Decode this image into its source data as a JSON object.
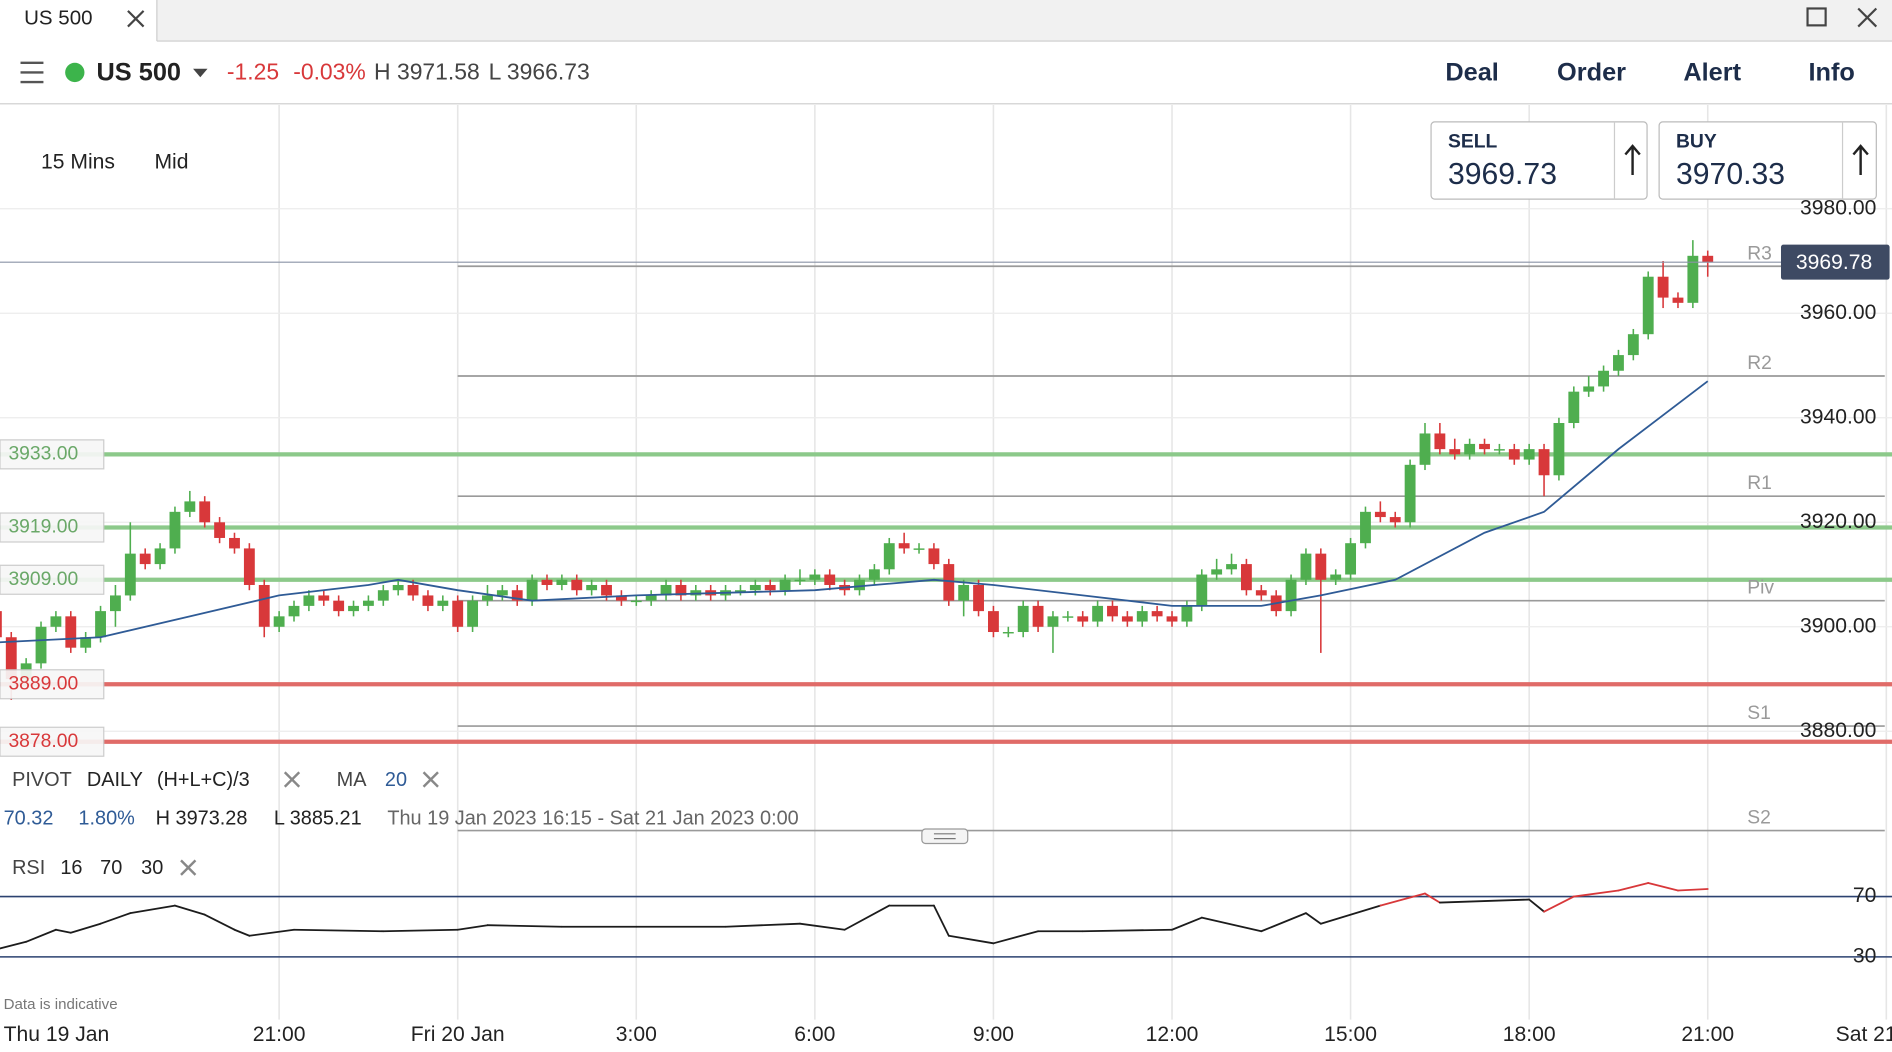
{
  "tab": {
    "title": "US 500"
  },
  "header": {
    "instrument": "US 500",
    "change": "-1.25",
    "change_pct": "-0.03%",
    "high": "H 3971.58",
    "low": "L 3966.73",
    "menu": [
      "Deal",
      "Order",
      "Alert",
      "Info"
    ]
  },
  "toolbar": {
    "interval": "15 Mins",
    "price_type": "Mid"
  },
  "quote": {
    "sell_label": "SELL",
    "sell": "3969.73",
    "buy_label": "BUY",
    "buy": "3970.33"
  },
  "indicators": {
    "pivot": {
      "name": "PIVOT",
      "period": "DAILY",
      "formula": "(H+L+C)/3"
    },
    "ma": {
      "name": "MA",
      "period": "20"
    },
    "stats": {
      "value": "70.32",
      "pct": "1.80%",
      "high": "H 3973.28",
      "low": "L 3885.21",
      "range": "Thu 19 Jan 2023 16:15 - Sat 21 Jan 2023 0:00"
    },
    "rsi": {
      "name": "RSI",
      "params": [
        "16",
        "70",
        "30"
      ]
    }
  },
  "note": "Data is indicative",
  "chart_data": [
    {
      "type": "candlestick",
      "x": [
        "2023-01-19T16:15",
        "2023-01-19T16:30",
        "2023-01-19T16:45",
        "2023-01-19T17:00",
        "2023-01-19T17:15",
        "2023-01-19T17:30",
        "2023-01-19T17:45",
        "2023-01-19T18:00",
        "2023-01-19T18:15",
        "2023-01-19T18:30",
        "2023-01-19T18:45",
        "2023-01-19T19:00",
        "2023-01-19T19:15",
        "2023-01-19T19:30",
        "2023-01-19T19:45",
        "2023-01-19T20:00",
        "2023-01-19T20:15",
        "2023-01-19T20:30",
        "2023-01-19T20:45",
        "2023-01-19T21:00",
        "2023-01-19T21:15",
        "2023-01-19T21:30",
        "2023-01-19T21:45",
        "2023-01-19T22:00",
        "2023-01-19T22:15",
        "2023-01-19T22:30",
        "2023-01-19T22:45",
        "2023-01-19T23:00",
        "2023-01-19T23:15",
        "2023-01-19T23:30",
        "2023-01-19T23:45",
        "2023-01-20T00:00",
        "2023-01-20T00:15",
        "2023-01-20T00:30",
        "2023-01-20T00:45",
        "2023-01-20T01:00",
        "2023-01-20T01:15",
        "2023-01-20T01:30",
        "2023-01-20T01:45",
        "2023-01-20T02:00",
        "2023-01-20T02:15",
        "2023-01-20T02:30",
        "2023-01-20T02:45",
        "2023-01-20T03:00",
        "2023-01-20T03:15",
        "2023-01-20T03:30",
        "2023-01-20T03:45",
        "2023-01-20T04:00",
        "2023-01-20T04:15",
        "2023-01-20T04:30",
        "2023-01-20T04:45",
        "2023-01-20T05:00",
        "2023-01-20T05:15",
        "2023-01-20T05:30",
        "2023-01-20T05:45",
        "2023-01-20T06:00",
        "2023-01-20T06:15",
        "2023-01-20T06:30",
        "2023-01-20T06:45",
        "2023-01-20T07:00",
        "2023-01-20T07:15",
        "2023-01-20T07:30",
        "2023-01-20T07:45",
        "2023-01-20T08:00",
        "2023-01-20T08:15",
        "2023-01-20T08:30",
        "2023-01-20T08:45",
        "2023-01-20T09:00",
        "2023-01-20T09:15",
        "2023-01-20T09:30",
        "2023-01-20T09:45",
        "2023-01-20T10:00",
        "2023-01-20T10:15",
        "2023-01-20T10:30",
        "2023-01-20T10:45",
        "2023-01-20T11:00",
        "2023-01-20T11:15",
        "2023-01-20T11:30",
        "2023-01-20T11:45",
        "2023-01-20T12:00",
        "2023-01-20T12:15",
        "2023-01-20T12:30",
        "2023-01-20T12:45",
        "2023-01-20T13:00",
        "2023-01-20T13:15",
        "2023-01-20T13:30",
        "2023-01-20T13:45",
        "2023-01-20T14:00",
        "2023-01-20T14:15",
        "2023-01-20T14:30",
        "2023-01-20T14:45",
        "2023-01-20T15:00",
        "2023-01-20T15:15",
        "2023-01-20T15:30",
        "2023-01-20T15:45",
        "2023-01-20T16:00",
        "2023-01-20T16:15",
        "2023-01-20T16:30",
        "2023-01-20T16:45",
        "2023-01-20T17:00",
        "2023-01-20T17:15",
        "2023-01-20T17:30",
        "2023-01-20T17:45",
        "2023-01-20T18:00",
        "2023-01-20T18:15",
        "2023-01-20T18:30",
        "2023-01-20T18:45",
        "2023-01-20T19:00",
        "2023-01-20T19:15",
        "2023-01-20T19:30",
        "2023-01-20T19:45",
        "2023-01-20T20:00",
        "2023-01-20T20:15",
        "2023-01-20T20:30",
        "2023-01-20T20:45",
        "2023-01-20T21:00"
      ],
      "open": [
        3903,
        3898,
        3890,
        3893,
        3900,
        3902,
        3896,
        3898,
        3903,
        3906,
        3914,
        3912,
        3915,
        3922,
        3924,
        3920,
        3917,
        3915,
        3908,
        3900,
        3902,
        3904,
        3906,
        3905,
        3903,
        3904,
        3905,
        3907,
        3908,
        3906,
        3904,
        3905,
        3900,
        3905,
        3906,
        3907,
        3905,
        3909,
        3908,
        3909,
        3907,
        3908,
        3906,
        3905,
        3905,
        3906,
        3908,
        3906,
        3907,
        3906,
        3907,
        3907,
        3908,
        3907,
        3909,
        3909,
        3910,
        3908,
        3907,
        3909,
        3911,
        3916,
        3915,
        3915,
        3912,
        3905,
        3908,
        3903,
        3899,
        3899,
        3904,
        3900,
        3902,
        3902,
        3901,
        3904,
        3902,
        3901,
        3903,
        3902,
        3901,
        3904,
        3910,
        3911,
        3912,
        3907,
        3906,
        3903,
        3909,
        3914,
        3909,
        3910,
        3916,
        3922,
        3921,
        3920,
        3931,
        3937,
        3934,
        3933,
        3935,
        3934,
        3934,
        3932,
        3934,
        3929,
        3939,
        3945,
        3946,
        3949,
        3952,
        3956,
        3967,
        3963,
        3962,
        3971
      ],
      "high": [
        3904,
        3899,
        3894,
        3901,
        3903,
        3903,
        3899,
        3904,
        3908,
        3920,
        3915,
        3916,
        3923,
        3926,
        3925,
        3921,
        3918,
        3916,
        3909,
        3903,
        3905,
        3907,
        3907,
        3906,
        3905,
        3906,
        3908,
        3909,
        3909,
        3907,
        3906,
        3906,
        3906,
        3908,
        3908,
        3908,
        3910,
        3910,
        3910,
        3910,
        3909,
        3909,
        3907,
        3906,
        3907,
        3909,
        3909,
        3908,
        3908,
        3908,
        3908,
        3909,
        3909,
        3910,
        3911,
        3911,
        3911,
        3909,
        3910,
        3912,
        3917,
        3918,
        3916,
        3916,
        3913,
        3909,
        3909,
        3904,
        3900,
        3905,
        3905,
        3903,
        3903,
        3903,
        3905,
        3905,
        3903,
        3904,
        3904,
        3903,
        3905,
        3911,
        3913,
        3914,
        3913,
        3908,
        3907,
        3910,
        3915,
        3915,
        3911,
        3917,
        3923,
        3924,
        3922,
        3932,
        3939,
        3939,
        3936,
        3936,
        3936,
        3935,
        3935,
        3935,
        3935,
        3940,
        3946,
        3948,
        3950,
        3953,
        3957,
        3968,
        3970,
        3964,
        3974,
        3972
      ],
      "low": [
        3897,
        3886,
        3889,
        3892,
        3899,
        3895,
        3895,
        3897,
        3900,
        3905,
        3911,
        3911,
        3914,
        3921,
        3919,
        3916,
        3914,
        3907,
        3898,
        3899,
        3901,
        3903,
        3904,
        3902,
        3902,
        3903,
        3904,
        3906,
        3905,
        3903,
        3903,
        3899,
        3899,
        3904,
        3905,
        3904,
        3904,
        3907,
        3907,
        3906,
        3906,
        3905,
        3904,
        3904,
        3904,
        3905,
        3905,
        3905,
        3905,
        3905,
        3906,
        3906,
        3906,
        3906,
        3908,
        3908,
        3907,
        3906,
        3906,
        3908,
        3910,
        3914,
        3914,
        3911,
        3904,
        3902,
        3902,
        3898,
        3898,
        3898,
        3899,
        3895,
        3901,
        3900,
        3900,
        3901,
        3900,
        3900,
        3901,
        3900,
        3900,
        3903,
        3909,
        3910,
        3906,
        3905,
        3902,
        3902,
        3908,
        3895,
        3908,
        3909,
        3915,
        3920,
        3919,
        3919,
        3930,
        3933,
        3932,
        3932,
        3933,
        3933,
        3931,
        3931,
        3925,
        3928,
        3938,
        3944,
        3945,
        3948,
        3951,
        3955,
        3961,
        3961,
        3961,
        3967
      ],
      "close": [
        3898,
        3890,
        3893,
        3900,
        3902,
        3896,
        3898,
        3903,
        3906,
        3914,
        3912,
        3915,
        3922,
        3924,
        3920,
        3917,
        3915,
        3908,
        3900,
        3902,
        3904,
        3906,
        3905,
        3903,
        3904,
        3905,
        3907,
        3908,
        3906,
        3904,
        3905,
        3900,
        3905,
        3906,
        3907,
        3905,
        3909,
        3908,
        3909,
        3907,
        3908,
        3906,
        3905,
        3905,
        3906,
        3908,
        3906,
        3907,
        3906,
        3907,
        3907,
        3908,
        3907,
        3909,
        3909,
        3910,
        3908,
        3907,
        3909,
        3911,
        3916,
        3915,
        3915,
        3912,
        3905,
        3908,
        3903,
        3899,
        3899,
        3904,
        3900,
        3902,
        3902,
        3901,
        3904,
        3902,
        3901,
        3903,
        3902,
        3901,
        3904,
        3910,
        3911,
        3912,
        3907,
        3906,
        3903,
        3909,
        3914,
        3909,
        3910,
        3916,
        3922,
        3921,
        3920,
        3931,
        3937,
        3934,
        3933,
        3935,
        3934,
        3934,
        3932,
        3934,
        3929,
        3939,
        3945,
        3946,
        3949,
        3952,
        3956,
        3967,
        3963,
        3962,
        3971,
        3969.78
      ],
      "up_color": "#4fae4f",
      "down_color": "#d8383a",
      "ma": {
        "x": [
          "2023-01-19T16:15",
          "2023-01-19T18:00",
          "2023-01-19T19:30",
          "2023-01-19T21:00",
          "2023-01-19T22:30",
          "2023-01-19T23:00",
          "2023-01-20T00:00",
          "2023-01-20T01:15",
          "2023-01-20T03:00",
          "2023-01-20T06:00",
          "2023-01-20T08:00",
          "2023-01-20T09:00",
          "2023-01-20T10:30",
          "2023-01-20T12:00",
          "2023-01-20T13:30",
          "2023-01-20T14:30",
          "2023-01-20T15:45",
          "2023-01-20T17:15",
          "2023-01-20T18:15",
          "2023-01-20T19:30",
          "2023-01-20T21:00"
        ],
        "values": [
          3897,
          3898,
          3902,
          3906,
          3908,
          3909,
          3907,
          3905,
          3906,
          3907,
          3909,
          3908,
          3906,
          3904,
          3904,
          3906,
          3909,
          3918,
          3922,
          3934,
          3947
        ],
        "color": "#2f5b96"
      },
      "levels": [
        {
          "value": 3933,
          "label": "3933.00",
          "color": "#8cc98a",
          "text_color": "#6aa868"
        },
        {
          "value": 3919,
          "label": "3919.00",
          "color": "#8cc98a",
          "text_color": "#6aa868"
        },
        {
          "value": 3909,
          "label": "3909.00",
          "color": "#8cc98a",
          "text_color": "#6aa868"
        },
        {
          "value": 3889,
          "label": "3889.00",
          "color": "#e06b68",
          "text_color": "#d8383a"
        },
        {
          "value": 3878,
          "label": "3878.00",
          "color": "#e06b68",
          "text_color": "#d8383a"
        }
      ],
      "pivots": [
        {
          "name": "R3",
          "value": 3969
        },
        {
          "name": "R2",
          "value": 3948
        },
        {
          "name": "R1",
          "value": 3925
        },
        {
          "name": "Piv",
          "value": 3905
        },
        {
          "name": "S1",
          "value": 3881
        },
        {
          "name": "S2",
          "value": 3861
        }
      ],
      "last": {
        "value": 3969.78,
        "label": "3969.78"
      },
      "ylim": [
        3858,
        4000
      ],
      "yticks": [
        {
          "value": 3880,
          "label": "3880.00"
        },
        {
          "value": 3900,
          "label": "3900.00"
        },
        {
          "value": 3920,
          "label": "3920.00"
        },
        {
          "value": 3940,
          "label": "3940.00"
        },
        {
          "value": 3960,
          "label": "3960.00"
        },
        {
          "value": 3980,
          "label": "3980.00"
        }
      ],
      "xticks": [
        {
          "value": "2023-01-19T16:15",
          "label": "Thu 19 Jan"
        },
        {
          "value": "2023-01-19T21:00",
          "label": "21:00"
        },
        {
          "value": "2023-01-20T00:00",
          "label": "Fri 20 Jan"
        },
        {
          "value": "2023-01-20T03:00",
          "label": "3:00"
        },
        {
          "value": "2023-01-20T06:00",
          "label": "6:00"
        },
        {
          "value": "2023-01-20T09:00",
          "label": "9:00"
        },
        {
          "value": "2023-01-20T12:00",
          "label": "12:00"
        },
        {
          "value": "2023-01-20T15:00",
          "label": "15:00"
        },
        {
          "value": "2023-01-20T18:00",
          "label": "18:00"
        },
        {
          "value": "2023-01-20T21:00",
          "label": "21:00"
        },
        {
          "value": "2023-01-21T00:00",
          "label": "Sat 21"
        }
      ],
      "grid": true
    },
    {
      "type": "line",
      "x": [
        "2023-01-19T16:15",
        "2023-01-19T16:45",
        "2023-01-19T17:15",
        "2023-01-19T17:30",
        "2023-01-19T18:00",
        "2023-01-19T18:30",
        "2023-01-19T19:15",
        "2023-01-19T19:45",
        "2023-01-19T20:15",
        "2023-01-19T20:30",
        "2023-01-19T21:15",
        "2023-01-19T22:45",
        "2023-01-20T00:00",
        "2023-01-20T00:30",
        "2023-01-20T01:45",
        "2023-01-20T03:00",
        "2023-01-20T04:30",
        "2023-01-20T05:45",
        "2023-01-20T06:30",
        "2023-01-20T07:15",
        "2023-01-20T08:00",
        "2023-01-20T08:15",
        "2023-01-20T09:00",
        "2023-01-20T09:45",
        "2023-01-20T10:30",
        "2023-01-20T12:00",
        "2023-01-20T12:30",
        "2023-01-20T13:30",
        "2023-01-20T14:15",
        "2023-01-20T14:30",
        "2023-01-20T15:30",
        "2023-01-20T16:15",
        "2023-01-20T16:30",
        "2023-01-20T18:00",
        "2023-01-20T18:15",
        "2023-01-20T18:45",
        "2023-01-20T19:30",
        "2023-01-20T20:00",
        "2023-01-20T20:30",
        "2023-01-20T21:00"
      ],
      "values": [
        35,
        40,
        48,
        46,
        52,
        59,
        64,
        58,
        48,
        44,
        48,
        47,
        48,
        51,
        50,
        50,
        50,
        52,
        48,
        64,
        64,
        44,
        39,
        47,
        47,
        48,
        56,
        47,
        59,
        52,
        64,
        72,
        66,
        68,
        60,
        70,
        74,
        79,
        74,
        75
      ],
      "color": "#1c1c1c",
      "overbought_color": "#d8383a",
      "level_color": "#2c4270",
      "ylim": [
        0,
        100
      ],
      "yticks": [
        30,
        70
      ]
    }
  ]
}
